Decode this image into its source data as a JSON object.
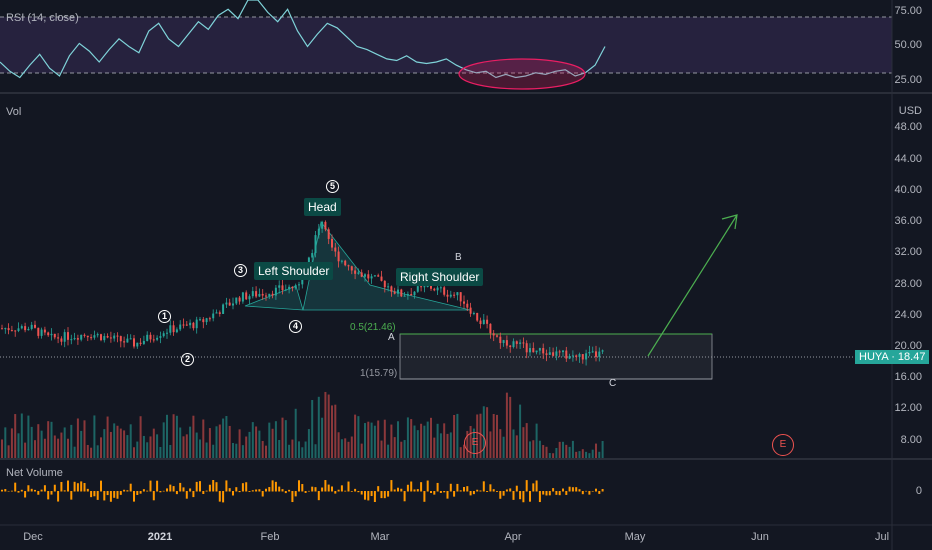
{
  "rsi": {
    "label": "RSI (14, close)",
    "axis_ticks": [
      "75.00",
      "50.00",
      "25.00"
    ]
  },
  "volume_pane": {
    "label": "Vol"
  },
  "price_axis": {
    "currency": "USD",
    "ticks": [
      "48.00",
      "44.00",
      "40.00",
      "36.00",
      "32.00",
      "28.00",
      "24.00",
      "20.00",
      "16.00",
      "12.00",
      "8.00"
    ]
  },
  "net_volume": {
    "label": "Net Volume",
    "axis_tick": "0"
  },
  "time_axis": {
    "labels": [
      "Dec",
      "2021",
      "Feb",
      "Mar",
      "Apr",
      "May",
      "Jun",
      "Jul"
    ]
  },
  "ticker": {
    "symbol": "HUYA",
    "price": "18.47",
    "text": "HUYA · 18.47"
  },
  "pattern": {
    "head": "Head",
    "left_shoulder": "Left Shoulder",
    "right_shoulder": "Right Shoulder"
  },
  "wave_marks": [
    "1",
    "2",
    "3",
    "4",
    "5"
  ],
  "points": {
    "a": "A",
    "b": "B",
    "c": "C"
  },
  "fib": {
    "level_05": "0.5(21.46)",
    "level_1": "1(15.79)"
  },
  "earnings": [
    "E",
    "E"
  ],
  "colors": {
    "background": "#131722",
    "up": "#26a69a",
    "down": "#ef5350",
    "rsi_line": "#7fd3d9",
    "rsi_band": "#7e57c2",
    "net_volume": "#ff9800",
    "arrow": "#4caf50",
    "callout": "#0b4a45"
  },
  "chart_data": [
    {
      "type": "line",
      "name": "RSI (14, close)",
      "ylim": [
        20,
        80
      ],
      "y": [
        40,
        34,
        30,
        38,
        45,
        36,
        31,
        44,
        52,
        47,
        40,
        48,
        55,
        50,
        46,
        60,
        65,
        55,
        50,
        58,
        66,
        61,
        70,
        74,
        68,
        80,
        85,
        72,
        66,
        74,
        60,
        50,
        58,
        65,
        62,
        56,
        50,
        48,
        45,
        42,
        41,
        44,
        40,
        39,
        40,
        42,
        38,
        35,
        33,
        34,
        30,
        32,
        30,
        31,
        33,
        32,
        34,
        35,
        31,
        33,
        38,
        50
      ]
    },
    {
      "type": "bar",
      "name": "Volume",
      "values": "approximated in pane"
    }
  ]
}
